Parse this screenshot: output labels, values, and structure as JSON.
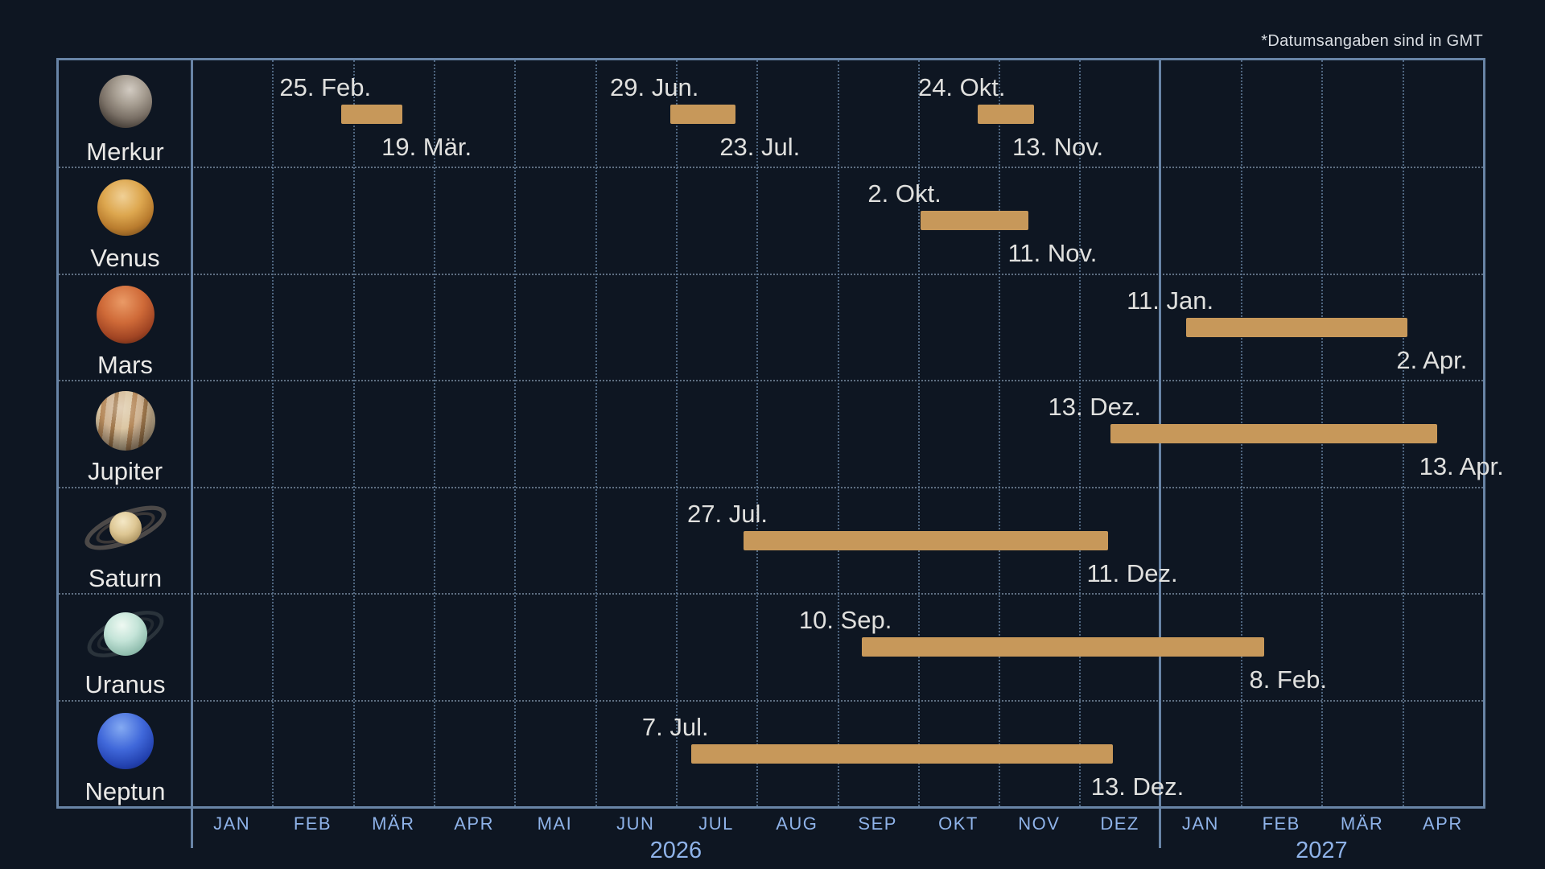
{
  "note": "*Datumsangaben sind in GMT",
  "colors": {
    "background": "#0e1622",
    "frame_border": "#6884a6",
    "bar": "#c7985a",
    "date_label": "#e0e0de",
    "month_label": "#8fb3e9",
    "note_text": "#d9dde2"
  },
  "chart_data": {
    "type": "gantt",
    "title": "",
    "time_axis": {
      "start": "2026-01",
      "end": "2027-04",
      "month_labels": [
        "JAN",
        "FEB",
        "MÄR",
        "APR",
        "MAI",
        "JUN",
        "JUL",
        "AUG",
        "SEP",
        "OKT",
        "NOV",
        "DEZ",
        "JAN",
        "FEB",
        "MÄR",
        "APR"
      ],
      "year_labels": [
        "2026",
        "2027"
      ],
      "grid": "dotted monthly verticals, solid line at year boundary"
    },
    "rows": [
      {
        "planet": "Merkur",
        "icon": "merkur-icon",
        "intervals": [
          {
            "start": "2026-02-25",
            "start_label": "25. Feb.",
            "end": "2026-03-19",
            "end_label": "19. Mär."
          },
          {
            "start": "2026-06-29",
            "start_label": "29. Jun.",
            "end": "2026-07-23",
            "end_label": "23. Jul."
          },
          {
            "start": "2026-10-24",
            "start_label": "24. Okt.",
            "end": "2026-11-13",
            "end_label": "13. Nov."
          }
        ]
      },
      {
        "planet": "Venus",
        "icon": "venus-icon",
        "intervals": [
          {
            "start": "2026-10-02",
            "start_label": "2. Okt.",
            "end": "2026-11-11",
            "end_label": "11. Nov."
          }
        ]
      },
      {
        "planet": "Mars",
        "icon": "mars-icon",
        "intervals": [
          {
            "start": "2027-01-11",
            "start_label": "11. Jan.",
            "end": "2027-04-02",
            "end_label": "2. Apr."
          }
        ]
      },
      {
        "planet": "Jupiter",
        "icon": "jupiter-icon",
        "intervals": [
          {
            "start": "2026-12-13",
            "start_label": "13. Dez.",
            "end": "2027-04-13",
            "end_label": "13. Apr."
          }
        ]
      },
      {
        "planet": "Saturn",
        "icon": "saturn-icon",
        "intervals": [
          {
            "start": "2026-07-27",
            "start_label": "27. Jul.",
            "end": "2026-12-11",
            "end_label": "11. Dez."
          }
        ]
      },
      {
        "planet": "Uranus",
        "icon": "uranus-icon",
        "intervals": [
          {
            "start": "2026-09-10",
            "start_label": "10. Sep.",
            "end": "2027-02-08",
            "end_label": "8. Feb."
          }
        ]
      },
      {
        "planet": "Neptun",
        "icon": "neptun-icon",
        "intervals": [
          {
            "start": "2026-07-07",
            "start_label": "7. Jul.",
            "end": "2026-12-13",
            "end_label": "13. Dez."
          }
        ]
      }
    ]
  }
}
